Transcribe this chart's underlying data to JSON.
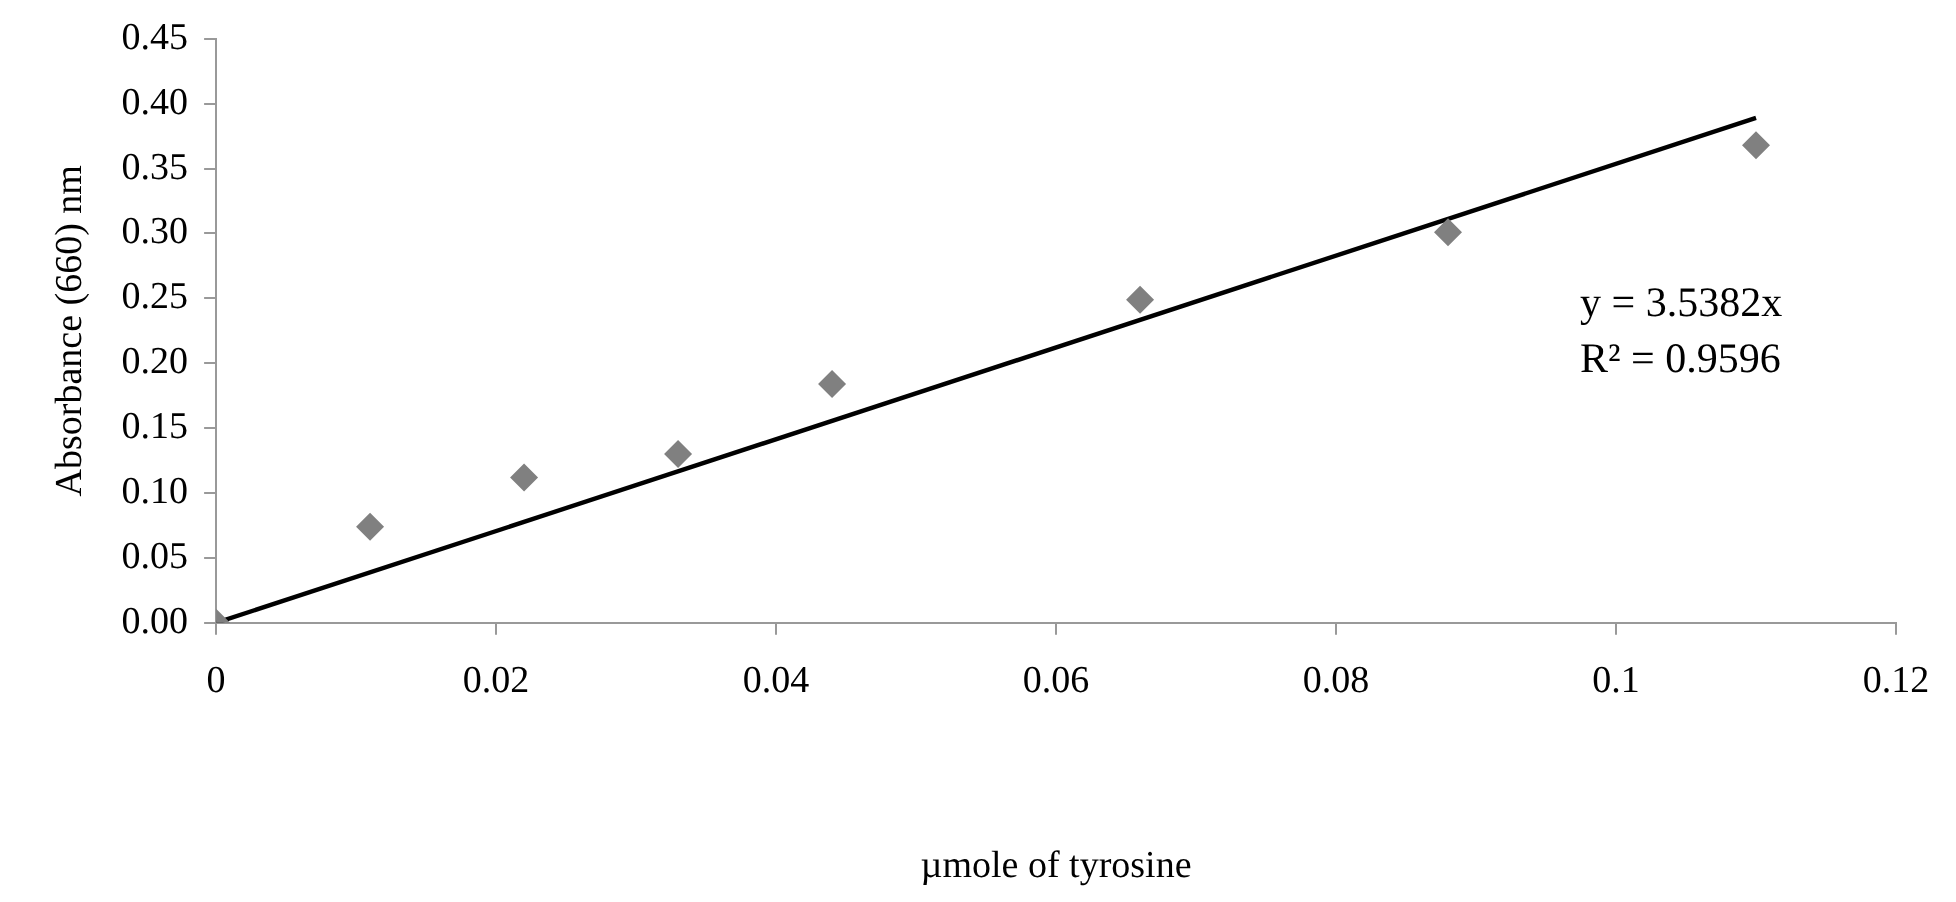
{
  "chart_data": {
    "type": "scatter",
    "xlabel": "µmole of tyrosine",
    "ylabel": "Absorbance (660) nm",
    "x": [
      0,
      0.011,
      0.022,
      0.033,
      0.044,
      0.066,
      0.088,
      0.11
    ],
    "series": [
      {
        "type": "scatter",
        "color": "#808080",
        "values": [
          0,
          0.074,
          0.112,
          0.13,
          0.184,
          0.249,
          0.301,
          0.368
        ],
        "marker": "diamond"
      },
      {
        "type": "line",
        "color": "#000000",
        "x": [
          0,
          0.11
        ],
        "values": [
          0,
          0.389
        ],
        "marker": "none",
        "line_style": "solid"
      }
    ],
    "xlim": [
      0,
      0.12
    ],
    "xticks": [
      0,
      0.02,
      0.04,
      0.06,
      0.08,
      0.1,
      0.12
    ],
    "ylim": [
      0,
      0.45
    ],
    "yticks": [
      {
        "value": 0,
        "label": "0.00"
      },
      {
        "value": 0.05,
        "label": "0.05"
      },
      {
        "value": 0.1,
        "label": "0.10"
      },
      {
        "value": 0.15,
        "label": "0.15"
      },
      {
        "value": 0.2,
        "label": "0.20"
      },
      {
        "value": 0.25,
        "label": "0.25"
      },
      {
        "value": 0.3,
        "label": "0.30"
      },
      {
        "value": 0.35,
        "label": "0.35"
      },
      {
        "value": 0.4,
        "label": "0.40"
      },
      {
        "value": 0.45,
        "label": "0.45"
      }
    ],
    "annotations": [
      "y = 3.5382x",
      "R² = 0.9596"
    ],
    "grid": false,
    "legend": false
  }
}
